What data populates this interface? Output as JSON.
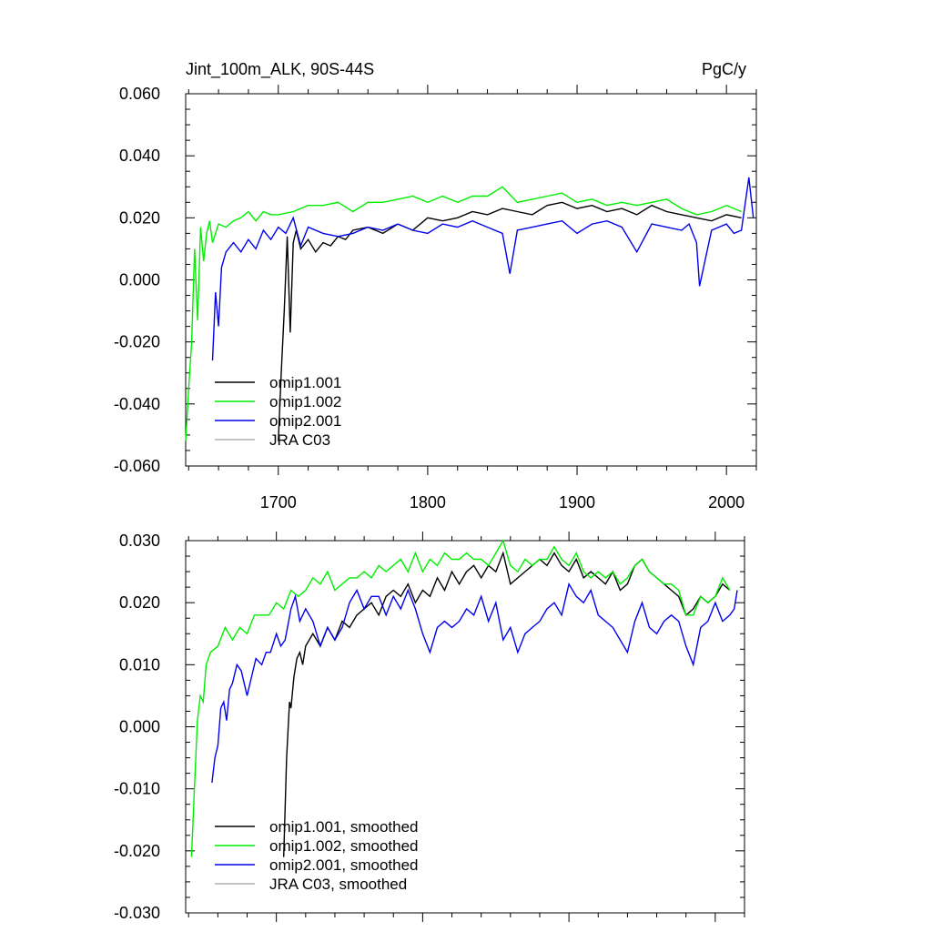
{
  "header": {
    "title": "Jint_100m_ALK, 90S-44S",
    "units": "PgC/y"
  },
  "colors": {
    "omip1_001": "#000000",
    "omip1_002": "#00ee00",
    "omip2_001": "#0000ee",
    "jra_c03": "#b0b0b0",
    "axis": "#000000"
  },
  "chart_data": [
    {
      "type": "line",
      "title": "Jint_100m_ALK, 90S-44S",
      "units_label": "PgC/y",
      "xlim": [
        1638,
        2020
      ],
      "ylim": [
        -0.06,
        0.06
      ],
      "x_ticks": [
        1700,
        1800,
        1900,
        2000
      ],
      "x_tick_labels": [
        "1700",
        "1800",
        "1900",
        "2000"
      ],
      "y_ticks": [
        -0.06,
        -0.04,
        -0.02,
        0.0,
        0.02,
        0.04,
        0.06
      ],
      "y_tick_labels": [
        "-0.060",
        "-0.040",
        "-0.020",
        "0.000",
        "0.020",
        "0.040",
        "0.060"
      ],
      "grid": false,
      "legend_position": "lower-left",
      "series": [
        {
          "name": "omip1.001",
          "color_key": "omip1_001",
          "x": [
            1700,
            1702,
            1704,
            1706,
            1708,
            1710,
            1712,
            1715,
            1720,
            1725,
            1730,
            1735,
            1740,
            1745,
            1750,
            1760,
            1770,
            1780,
            1790,
            1800,
            1810,
            1820,
            1830,
            1840,
            1850,
            1860,
            1870,
            1880,
            1890,
            1900,
            1910,
            1920,
            1930,
            1940,
            1950,
            1960,
            1970,
            1980,
            1990,
            2000,
            2010
          ],
          "y": [
            -0.052,
            -0.03,
            -0.01,
            0.014,
            -0.017,
            0.012,
            0.016,
            0.01,
            0.013,
            0.009,
            0.012,
            0.011,
            0.014,
            0.013,
            0.016,
            0.017,
            0.015,
            0.018,
            0.016,
            0.02,
            0.019,
            0.02,
            0.022,
            0.021,
            0.023,
            0.022,
            0.021,
            0.024,
            0.025,
            0.023,
            0.024,
            0.022,
            0.023,
            0.021,
            0.024,
            0.022,
            0.021,
            0.02,
            0.019,
            0.021,
            0.02
          ]
        },
        {
          "name": "omip1.002",
          "color_key": "omip1_002",
          "x": [
            1638,
            1640,
            1642,
            1644,
            1646,
            1648,
            1650,
            1652,
            1654,
            1656,
            1660,
            1665,
            1670,
            1675,
            1680,
            1685,
            1690,
            1695,
            1700,
            1710,
            1720,
            1730,
            1740,
            1750,
            1760,
            1770,
            1780,
            1790,
            1800,
            1810,
            1820,
            1830,
            1840,
            1850,
            1860,
            1870,
            1880,
            1890,
            1900,
            1910,
            1920,
            1930,
            1940,
            1950,
            1960,
            1970,
            1980,
            1990,
            2000,
            2010
          ],
          "y": [
            -0.052,
            -0.035,
            -0.02,
            0.01,
            -0.013,
            0.017,
            0.006,
            0.015,
            0.019,
            0.012,
            0.018,
            0.017,
            0.019,
            0.02,
            0.022,
            0.019,
            0.022,
            0.021,
            0.021,
            0.022,
            0.024,
            0.024,
            0.025,
            0.022,
            0.025,
            0.025,
            0.026,
            0.027,
            0.025,
            0.027,
            0.025,
            0.027,
            0.027,
            0.03,
            0.025,
            0.026,
            0.027,
            0.028,
            0.025,
            0.026,
            0.024,
            0.025,
            0.024,
            0.025,
            0.026,
            0.023,
            0.021,
            0.022,
            0.024,
            0.022
          ]
        },
        {
          "name": "omip2.001",
          "color_key": "omip2_001",
          "x": [
            1656,
            1658,
            1660,
            1662,
            1665,
            1670,
            1675,
            1680,
            1685,
            1690,
            1695,
            1700,
            1705,
            1710,
            1715,
            1720,
            1730,
            1740,
            1750,
            1760,
            1770,
            1780,
            1790,
            1800,
            1810,
            1820,
            1830,
            1840,
            1850,
            1855,
            1860,
            1870,
            1880,
            1890,
            1900,
            1910,
            1920,
            1930,
            1940,
            1950,
            1960,
            1970,
            1975,
            1980,
            1982,
            1990,
            2000,
            2005,
            2010,
            2015,
            2018
          ],
          "y": [
            -0.026,
            -0.004,
            -0.015,
            0.004,
            0.009,
            0.012,
            0.009,
            0.013,
            0.01,
            0.016,
            0.013,
            0.017,
            0.015,
            0.02,
            0.011,
            0.017,
            0.015,
            0.014,
            0.015,
            0.017,
            0.016,
            0.018,
            0.016,
            0.015,
            0.018,
            0.017,
            0.019,
            0.017,
            0.015,
            0.002,
            0.016,
            0.017,
            0.018,
            0.019,
            0.015,
            0.018,
            0.019,
            0.017,
            0.009,
            0.018,
            0.017,
            0.016,
            0.018,
            0.012,
            -0.002,
            0.016,
            0.018,
            0.015,
            0.016,
            0.033,
            0.02
          ]
        },
        {
          "name": "JRA C03",
          "color_key": "jra_c03",
          "x": [],
          "y": []
        }
      ]
    },
    {
      "type": "line",
      "title": "",
      "xlim": [
        1638,
        2020
      ],
      "ylim": [
        -0.03,
        0.03
      ],
      "x_ticks": [
        1700,
        1800,
        1900,
        2000
      ],
      "x_tick_labels": [],
      "y_ticks": [
        -0.03,
        -0.02,
        -0.01,
        0.0,
        0.01,
        0.02,
        0.03
      ],
      "y_tick_labels": [
        "-0.030",
        "-0.020",
        "-0.010",
        "0.000",
        "0.010",
        "0.020",
        "0.030"
      ],
      "grid": false,
      "legend_position": "lower-left",
      "series": [
        {
          "name": "omip1.001, smoothed",
          "color_key": "omip1_001",
          "x": [
            1705,
            1707,
            1709,
            1710,
            1712,
            1714,
            1716,
            1718,
            1720,
            1725,
            1730,
            1735,
            1740,
            1745,
            1750,
            1755,
            1760,
            1765,
            1770,
            1775,
            1780,
            1785,
            1790,
            1795,
            1800,
            1805,
            1810,
            1815,
            1820,
            1825,
            1830,
            1835,
            1840,
            1845,
            1850,
            1855,
            1860,
            1865,
            1870,
            1875,
            1880,
            1885,
            1890,
            1895,
            1900,
            1905,
            1910,
            1915,
            1920,
            1925,
            1930,
            1935,
            1940,
            1945,
            1950,
            1955,
            1960,
            1965,
            1970,
            1975,
            1980,
            1985,
            1990,
            1995,
            2000,
            2005,
            2010
          ],
          "y": [
            -0.021,
            -0.005,
            0.004,
            0.003,
            0.008,
            0.011,
            0.012,
            0.01,
            0.013,
            0.015,
            0.013,
            0.016,
            0.014,
            0.017,
            0.016,
            0.018,
            0.019,
            0.02,
            0.018,
            0.021,
            0.022,
            0.021,
            0.023,
            0.02,
            0.022,
            0.021,
            0.024,
            0.022,
            0.025,
            0.023,
            0.025,
            0.026,
            0.024,
            0.026,
            0.025,
            0.028,
            0.023,
            0.024,
            0.025,
            0.026,
            0.027,
            0.026,
            0.028,
            0.026,
            0.025,
            0.027,
            0.024,
            0.025,
            0.024,
            0.023,
            0.025,
            0.022,
            0.023,
            0.026,
            0.027,
            0.025,
            0.024,
            0.023,
            0.022,
            0.021,
            0.018,
            0.019,
            0.021,
            0.02,
            0.021,
            0.023,
            0.022
          ]
        },
        {
          "name": "omip1.002, smoothed",
          "color_key": "omip1_002",
          "x": [
            1642,
            1644,
            1646,
            1648,
            1650,
            1652,
            1655,
            1660,
            1665,
            1670,
            1675,
            1680,
            1685,
            1690,
            1695,
            1700,
            1705,
            1710,
            1715,
            1720,
            1725,
            1730,
            1735,
            1740,
            1745,
            1750,
            1755,
            1760,
            1765,
            1770,
            1775,
            1780,
            1785,
            1790,
            1795,
            1800,
            1805,
            1810,
            1815,
            1820,
            1825,
            1830,
            1835,
            1840,
            1845,
            1850,
            1855,
            1860,
            1865,
            1870,
            1875,
            1880,
            1885,
            1890,
            1895,
            1900,
            1905,
            1910,
            1915,
            1920,
            1925,
            1930,
            1935,
            1940,
            1945,
            1950,
            1955,
            1960,
            1965,
            1970,
            1975,
            1980,
            1985,
            1990,
            1995,
            2000,
            2005,
            2010
          ],
          "y": [
            -0.021,
            -0.01,
            0.001,
            0.005,
            0.004,
            0.01,
            0.012,
            0.013,
            0.016,
            0.014,
            0.016,
            0.015,
            0.018,
            0.018,
            0.018,
            0.02,
            0.019,
            0.022,
            0.021,
            0.022,
            0.024,
            0.023,
            0.025,
            0.022,
            0.023,
            0.024,
            0.024,
            0.025,
            0.024,
            0.026,
            0.025,
            0.026,
            0.027,
            0.025,
            0.028,
            0.025,
            0.027,
            0.026,
            0.028,
            0.027,
            0.027,
            0.028,
            0.027,
            0.027,
            0.026,
            0.028,
            0.03,
            0.026,
            0.025,
            0.027,
            0.026,
            0.027,
            0.027,
            0.029,
            0.027,
            0.026,
            0.028,
            0.025,
            0.024,
            0.025,
            0.024,
            0.025,
            0.023,
            0.024,
            0.026,
            0.027,
            0.025,
            0.024,
            0.023,
            0.023,
            0.022,
            0.018,
            0.018,
            0.021,
            0.02,
            0.021,
            0.024,
            0.022
          ]
        },
        {
          "name": "omip2.001, smoothed",
          "color_key": "omip2_001",
          "x": [
            1656,
            1658,
            1660,
            1662,
            1664,
            1666,
            1668,
            1670,
            1673,
            1676,
            1680,
            1683,
            1686,
            1690,
            1693,
            1696,
            1700,
            1703,
            1706,
            1710,
            1713,
            1716,
            1720,
            1725,
            1730,
            1735,
            1740,
            1745,
            1750,
            1755,
            1760,
            1765,
            1770,
            1775,
            1780,
            1785,
            1790,
            1795,
            1800,
            1805,
            1810,
            1815,
            1820,
            1825,
            1830,
            1835,
            1840,
            1845,
            1850,
            1855,
            1860,
            1865,
            1870,
            1875,
            1880,
            1885,
            1890,
            1895,
            1900,
            1905,
            1910,
            1915,
            1920,
            1925,
            1930,
            1935,
            1940,
            1945,
            1950,
            1955,
            1960,
            1965,
            1970,
            1975,
            1980,
            1985,
            1990,
            1995,
            2000,
            2005,
            2010,
            2013,
            2015
          ],
          "y": [
            -0.009,
            -0.005,
            -0.003,
            0.003,
            0.004,
            0.001,
            0.006,
            0.007,
            0.01,
            0.009,
            0.005,
            0.008,
            0.011,
            0.01,
            0.012,
            0.012,
            0.015,
            0.013,
            0.014,
            0.019,
            0.021,
            0.017,
            0.019,
            0.017,
            0.013,
            0.016,
            0.014,
            0.016,
            0.02,
            0.022,
            0.019,
            0.021,
            0.021,
            0.018,
            0.021,
            0.019,
            0.022,
            0.019,
            0.015,
            0.012,
            0.016,
            0.017,
            0.016,
            0.017,
            0.019,
            0.018,
            0.021,
            0.017,
            0.02,
            0.014,
            0.016,
            0.012,
            0.015,
            0.016,
            0.017,
            0.019,
            0.02,
            0.018,
            0.023,
            0.021,
            0.02,
            0.022,
            0.018,
            0.017,
            0.016,
            0.014,
            0.012,
            0.017,
            0.02,
            0.016,
            0.015,
            0.017,
            0.018,
            0.017,
            0.013,
            0.01,
            0.016,
            0.017,
            0.02,
            0.017,
            0.018,
            0.019,
            0.022
          ]
        },
        {
          "name": "JRA C03, smoothed",
          "color_key": "jra_c03",
          "x": [],
          "y": []
        }
      ]
    }
  ]
}
